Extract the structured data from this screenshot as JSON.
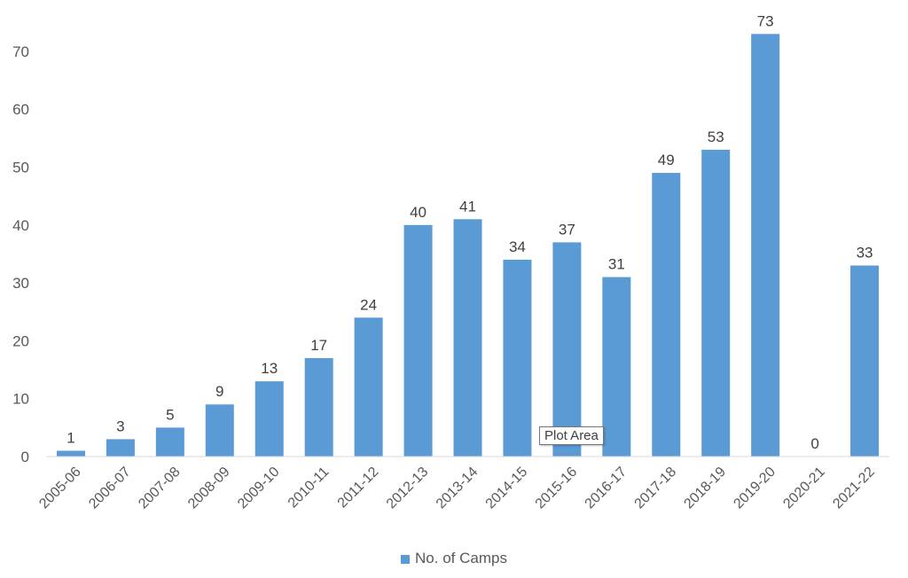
{
  "chart_data": {
    "type": "bar",
    "categories": [
      "2005-06",
      "2006-07",
      "2007-08",
      "2008-09",
      "2009-10",
      "2010-11",
      "2011-12",
      "2012-13",
      "2013-14",
      "2014-15",
      "2015-16",
      "2016-17",
      "2017-18",
      "2018-19",
      "2019-20",
      "2020-21",
      "2021-22"
    ],
    "series": [
      {
        "name": "No. of Camps",
        "values": [
          1,
          3,
          5,
          9,
          13,
          17,
          24,
          40,
          41,
          34,
          37,
          31,
          49,
          53,
          73,
          0,
          33
        ]
      }
    ],
    "ylim": [
      0,
      73
    ],
    "yticks": [
      0,
      10,
      20,
      30,
      40,
      50,
      60,
      70
    ],
    "title": "",
    "xlabel": "",
    "ylabel": "",
    "grid": false,
    "legend_position": "bottom",
    "colors": {
      "bar": "#5b9bd5",
      "axis": "#d9d9d9"
    }
  },
  "tooltip": {
    "text": "Plot Area"
  }
}
